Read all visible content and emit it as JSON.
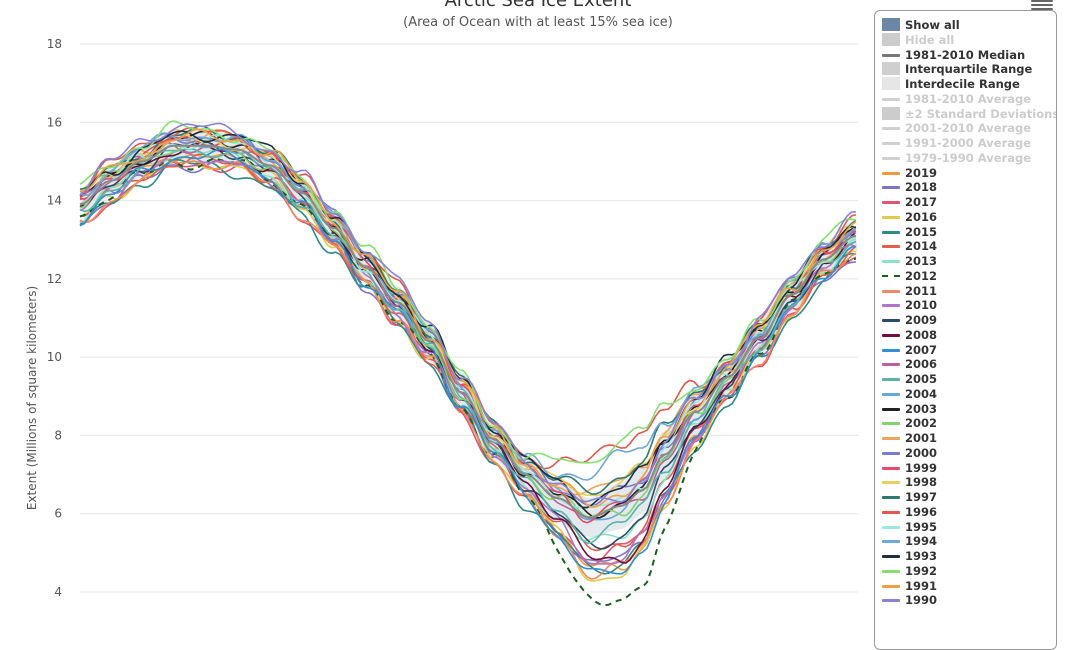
{
  "chart_data": {
    "type": "line",
    "title": "Arctic Sea Ice Extent",
    "subtitle": "(Area of Ocean with at least 15% sea ice)",
    "ylabel": "Extent (Millions of square kilometers)",
    "xlabel": "",
    "ylim": [
      3.5,
      18.5
    ],
    "yticks": [
      4,
      6,
      8,
      10,
      12,
      14,
      16,
      18
    ],
    "x_unit": "day of year",
    "xlim": [
      1,
      366
    ],
    "grid": true,
    "legend_position": "right",
    "median": {
      "x": [
        1,
        15,
        30,
        45,
        60,
        75,
        90,
        105,
        120,
        135,
        150,
        165,
        180,
        195,
        210,
        225,
        240,
        255,
        265,
        275,
        290,
        305,
        320,
        335,
        350,
        365
      ],
      "values": [
        13.9,
        14.5,
        15.0,
        15.4,
        15.4,
        15.3,
        14.9,
        14.2,
        13.3,
        12.3,
        11.4,
        10.4,
        9.1,
        7.9,
        7.0,
        6.4,
        5.9,
        6.2,
        6.6,
        7.5,
        8.6,
        9.5,
        10.5,
        11.6,
        12.5,
        13.1
      ]
    },
    "band": {
      "x": [
        1,
        15,
        30,
        45,
        60,
        75,
        90,
        105,
        120,
        135,
        150,
        165,
        180,
        195,
        210,
        225,
        240,
        255,
        265,
        275,
        290,
        305,
        320,
        335,
        350,
        365
      ],
      "lower": [
        13.5,
        14.1,
        14.6,
        15.0,
        15.0,
        14.9,
        14.5,
        13.8,
        12.9,
        11.9,
        11.0,
        9.9,
        8.6,
        7.4,
        6.5,
        5.9,
        5.4,
        5.6,
        6.0,
        6.9,
        8.0,
        9.0,
        10.0,
        11.1,
        12.1,
        12.7
      ],
      "upper": [
        14.3,
        14.9,
        15.4,
        15.8,
        15.8,
        15.7,
        15.3,
        14.6,
        13.7,
        12.7,
        11.8,
        10.9,
        9.6,
        8.4,
        7.5,
        6.9,
        6.4,
        6.8,
        7.2,
        8.1,
        9.2,
        10.0,
        11.0,
        12.1,
        12.9,
        13.5
      ]
    },
    "series": [
      {
        "name": "2019",
        "color": "#f29a3b",
        "shift": -0.3,
        "min_val": 4.3
      },
      {
        "name": "2018",
        "color": "#7d73c9",
        "shift": -0.45,
        "min_val": 4.6
      },
      {
        "name": "2017",
        "color": "#e05672",
        "shift": -0.5,
        "min_val": 4.7
      },
      {
        "name": "2016",
        "color": "#e2c94a",
        "shift": -0.4,
        "min_val": 4.2
      },
      {
        "name": "2015",
        "color": "#2f8a85",
        "shift": -0.55,
        "min_val": 4.4
      },
      {
        "name": "2014",
        "color": "#e06050",
        "shift": -0.35,
        "min_val": 5.0
      },
      {
        "name": "2013",
        "color": "#88e3c3",
        "shift": -0.2,
        "min_val": 5.1
      },
      {
        "name": "2012",
        "color": "#1b5e20",
        "shift": -0.35,
        "min_val": 3.4,
        "dashed": true
      },
      {
        "name": "2011",
        "color": "#ef8a62",
        "shift": -0.45,
        "min_val": 4.3
      },
      {
        "name": "2010",
        "color": "#b373c9",
        "shift": -0.25,
        "min_val": 4.6
      },
      {
        "name": "2009",
        "color": "#2e4a6b",
        "shift": -0.1,
        "min_val": 5.1
      },
      {
        "name": "2008",
        "color": "#6d0f3a",
        "shift": -0.05,
        "min_val": 4.6
      },
      {
        "name": "2007",
        "color": "#2f8fd1",
        "shift": -0.3,
        "min_val": 4.2
      },
      {
        "name": "2006",
        "color": "#c0609a",
        "shift": 0.05,
        "min_val": 5.8
      },
      {
        "name": "2005",
        "color": "#5bb3a8",
        "shift": -0.15,
        "min_val": 5.4
      },
      {
        "name": "2004",
        "color": "#67a7d6",
        "shift": 0.1,
        "min_val": 5.8
      },
      {
        "name": "2003",
        "color": "#222222",
        "shift": 0.15,
        "min_val": 6.0
      },
      {
        "name": "2002",
        "color": "#7fd36a",
        "shift": 0.0,
        "min_val": 5.8
      },
      {
        "name": "2001",
        "color": "#f0a45a",
        "shift": 0.2,
        "min_val": 6.6
      },
      {
        "name": "2000",
        "color": "#7a7ad4",
        "shift": 0.25,
        "min_val": 6.2
      },
      {
        "name": "1999",
        "color": "#e44c6a",
        "shift": 0.15,
        "min_val": 6.0
      },
      {
        "name": "1998",
        "color": "#e8d060",
        "shift": 0.2,
        "min_val": 6.5
      },
      {
        "name": "1997",
        "color": "#2c7a70",
        "shift": 0.3,
        "min_val": 6.7
      },
      {
        "name": "1996",
        "color": "#e4574d",
        "shift": 0.35,
        "min_val": 7.5
      },
      {
        "name": "1995",
        "color": "#9be8d8",
        "shift": 0.1,
        "min_val": 6.1
      },
      {
        "name": "1994",
        "color": "#6fa7d8",
        "shift": 0.25,
        "min_val": 7.1
      },
      {
        "name": "1993",
        "color": "#1f2f3f",
        "shift": 0.3,
        "min_val": 6.4
      },
      {
        "name": "1992",
        "color": "#86e070",
        "shift": 0.4,
        "min_val": 7.5
      },
      {
        "name": "1991",
        "color": "#f0a040",
        "shift": 0.25,
        "min_val": 6.3
      },
      {
        "name": "1990",
        "color": "#8a80d8",
        "shift": 0.45,
        "min_val": 6.1
      }
    ]
  },
  "legend": {
    "controls": [
      {
        "label": "Show all",
        "color": "#6b87a8",
        "kind": "box",
        "dim": false
      },
      {
        "label": "Hide all",
        "color": "#cccccc",
        "kind": "box",
        "dim": true
      }
    ],
    "references": [
      {
        "label": "1981-2010 Median",
        "color": "#777777",
        "kind": "line",
        "dim": false
      },
      {
        "label": "Interquartile Range",
        "color": "#cfcfcf",
        "kind": "box",
        "dim": false
      },
      {
        "label": "Interdecile Range",
        "color": "#e6e6e6",
        "kind": "box",
        "dim": false
      },
      {
        "label": "1981-2010 Average",
        "color": "#d0d0d0",
        "kind": "line",
        "dim": true
      },
      {
        "label": "±2 Standard Deviations",
        "color": "#cccccc",
        "kind": "box",
        "dim": true
      },
      {
        "label": "2001-2010 Average",
        "color": "#d0d0d0",
        "kind": "line",
        "dim": true
      },
      {
        "label": "1991-2000 Average",
        "color": "#d0d0d0",
        "kind": "line",
        "dim": true
      },
      {
        "label": "1979-1990 Average",
        "color": "#d0d0d0",
        "kind": "line",
        "dim": true
      }
    ]
  }
}
